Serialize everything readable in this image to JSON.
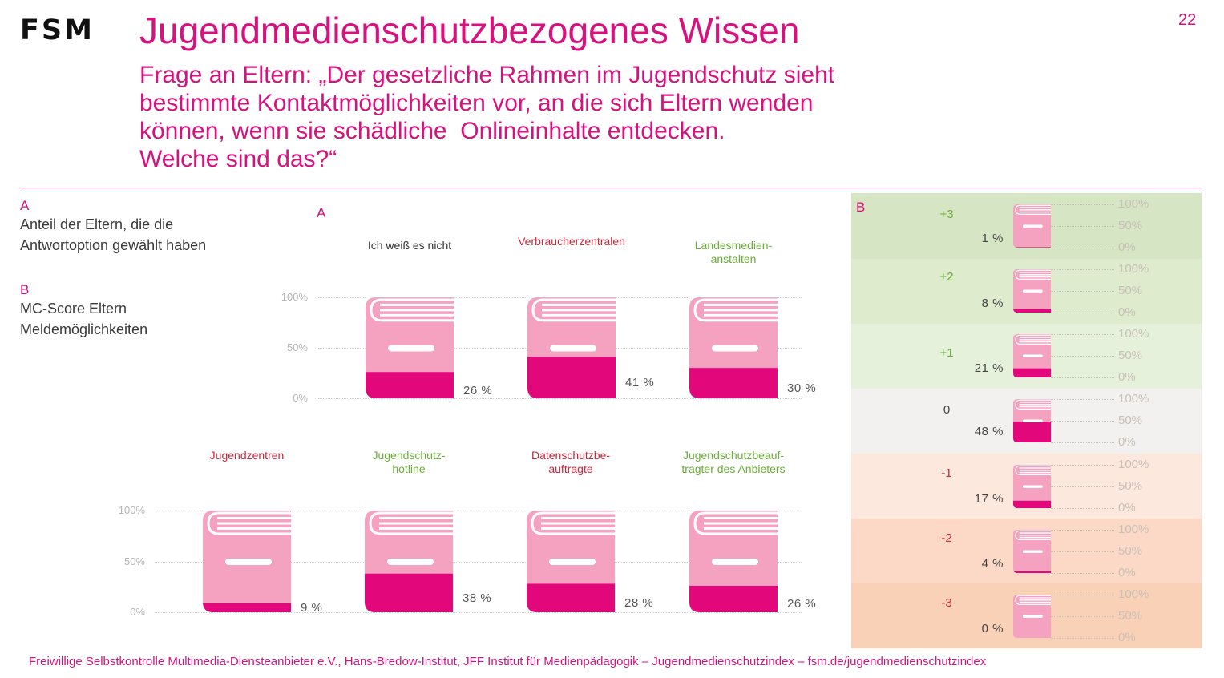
{
  "header": {
    "logo": "FSM",
    "title": "Jugendmedienschutzbezogenes Wissen",
    "question": "Frage an Eltern: „Der gesetzliche Rahmen im Jugendschutz sieht\nbestimmte Kontaktmöglichkeiten vor, an die sich Eltern wenden\nkönnen, wenn sie schädliche  Onlineinhalte entdecken.\nWelche sind das?“",
    "page_number": "22"
  },
  "legend": {
    "a_letter": "A",
    "a_text": "Anteil der Eltern, die die\nAntwortoption gewählt haben",
    "b_letter": "B",
    "b_text": "MC-Score Eltern\nMeldemöglichkeiten"
  },
  "colors": {
    "brand_magenta": "#d6127e",
    "book_light": "#f4a2bf",
    "book_fill": "#e2077a",
    "label_red": "#c8283c",
    "label_green": "#6aad3a",
    "label_neutral": "#333333"
  },
  "chart_data": [
    {
      "type": "bar",
      "panel": "A",
      "title": "Anteil der Eltern, die die Antwortoption gewählt haben",
      "marker": "A",
      "ylim": [
        0,
        100
      ],
      "yticks": [
        "100%",
        "50%",
        "0%"
      ],
      "categories": [
        {
          "label": "Ich weiß es nicht",
          "correct": null,
          "value": 26,
          "value_label": "26 %"
        },
        {
          "label": "Verbraucherzentralen",
          "correct": false,
          "value": 41,
          "value_label": "41 %"
        },
        {
          "label": "Landesmedien-\nanstalten",
          "correct": true,
          "value": 30,
          "value_label": "30 %"
        },
        {
          "label": "Jugendzentren",
          "correct": false,
          "value": 9,
          "value_label": "9 %"
        },
        {
          "label": "Jugendschutz-\nhotline",
          "correct": true,
          "value": 38,
          "value_label": "38 %"
        },
        {
          "label": "Datenschutzbe-\nauftragte",
          "correct": false,
          "value": 28,
          "value_label": "28 %"
        },
        {
          "label": "Jugendschutzbeauf-\ntragter des Anbieters",
          "correct": true,
          "value": 26,
          "value_label": "26 %"
        }
      ]
    },
    {
      "type": "bar",
      "panel": "B",
      "title": "MC-Score Eltern Meldemöglichkeiten",
      "marker": "B",
      "ylim": [
        0,
        100
      ],
      "yticks": [
        "100%",
        "50%",
        "0%"
      ],
      "rows": [
        {
          "score": "+3",
          "value": 1,
          "value_label": "1 %",
          "tone": "positive",
          "bg": "#d6e5c3"
        },
        {
          "score": "+2",
          "value": 8,
          "value_label": "8 %",
          "tone": "positive",
          "bg": "#deebcd"
        },
        {
          "score": "+1",
          "value": 21,
          "value_label": "21 %",
          "tone": "positive",
          "bg": "#e6f1dc"
        },
        {
          "score": "0",
          "value": 48,
          "value_label": "48 %",
          "tone": "neutral",
          "bg": "#f2f1ef"
        },
        {
          "score": "-1",
          "value": 17,
          "value_label": "17 %",
          "tone": "negative",
          "bg": "#fde8de"
        },
        {
          "score": "-2",
          "value": 4,
          "value_label": "4 %",
          "tone": "negative",
          "bg": "#fbd9c6"
        },
        {
          "score": "-3",
          "value": 0,
          "value_label": "0 %",
          "tone": "negative",
          "bg": "#f9d1b7"
        }
      ]
    }
  ],
  "footer": "Freiwillige Selbstkontrolle Multimedia-Diensteanbieter e.V., Hans-Bredow-Institut, JFF Institut für Medienpädagogik –  Jugendmedienschutzindex – fsm.de/jugendmedienschutzindex"
}
